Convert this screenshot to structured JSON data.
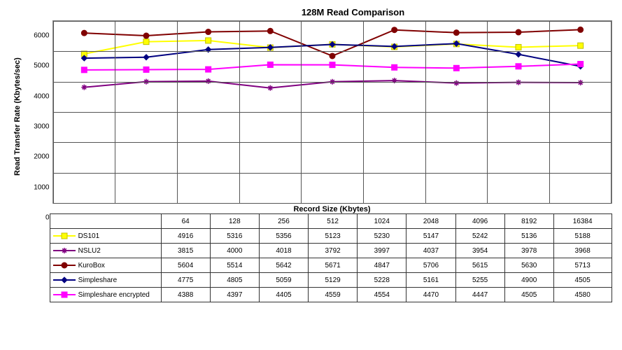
{
  "chart": {
    "title": "128M Read Comparison",
    "x_axis_label": "Record Size  (Kbytes)",
    "y_axis_label": "Read Transfer Rate (Kbytes/sec)",
    "categories": [
      "64",
      "128",
      "256",
      "512",
      "1024",
      "2048",
      "4096",
      "8192",
      "16384"
    ],
    "ylim": [
      0,
      6000
    ],
    "ytick_step": 1000,
    "yticks": [
      "0",
      "1000",
      "2000",
      "3000",
      "4000",
      "5000",
      "6000"
    ],
    "background_color": "#ffffff",
    "grid_color": "#555555",
    "title_fontsize": 13,
    "label_fontsize": 11,
    "series": [
      {
        "name": "DS101",
        "color": "#ffff00",
        "marker": "square",
        "marker_fill": "#ffff00",
        "marker_stroke": "#c0c000",
        "values": [
          4916,
          5316,
          5356,
          5123,
          5230,
          5147,
          5242,
          5136,
          5188
        ]
      },
      {
        "name": "NSLU2",
        "color": "#800080",
        "marker": "asterisk",
        "marker_fill": "none",
        "marker_stroke": "#800080",
        "values": [
          3815,
          4000,
          4018,
          3792,
          3997,
          4037,
          3954,
          3978,
          3968
        ]
      },
      {
        "name": "KuroBox",
        "color": "#800000",
        "marker": "circle",
        "marker_fill": "#800000",
        "marker_stroke": "#800000",
        "values": [
          5604,
          5514,
          5642,
          5671,
          4847,
          5706,
          5615,
          5630,
          5713
        ]
      },
      {
        "name": "Simpleshare",
        "color": "#000080",
        "marker": "diamond",
        "marker_fill": "#000080",
        "marker_stroke": "#000080",
        "values": [
          4775,
          4805,
          5059,
          5129,
          5228,
          5161,
          5255,
          4900,
          4505
        ]
      },
      {
        "name": "Simpleshare encrypted",
        "color": "#ff00ff",
        "marker": "square",
        "marker_fill": "#ff00ff",
        "marker_stroke": "#ff00ff",
        "values": [
          4388,
          4397,
          4405,
          4559,
          4554,
          4470,
          4447,
          4505,
          4580
        ]
      }
    ]
  }
}
